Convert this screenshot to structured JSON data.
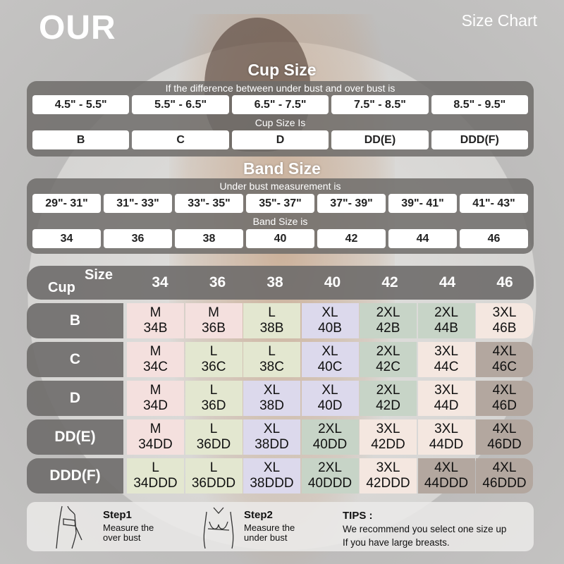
{
  "brand": "OUR",
  "header_right": "Size Chart",
  "cup_section": {
    "title": "Cup Size",
    "subtitle": "If the  difference between under bust and over bust is",
    "ranges": [
      "4.5\" -  5.5\"",
      "5.5\" -  6.5\"",
      "6.5\" -  7.5\"",
      "7.5\" -  8.5\"",
      "8.5\" -  9.5\""
    ],
    "result_label": "Cup Size Is",
    "cups": [
      "B",
      "C",
      "D",
      "DD(E)",
      "DDD(F)"
    ]
  },
  "band_section": {
    "title": "Band Size",
    "subtitle": "Under bust measurement is",
    "ranges": [
      "29\"- 31\"",
      "31\"- 33\"",
      "33\"- 35\"",
      "35\"- 37\"",
      "37\"- 39\"",
      "39\"- 41\"",
      "41\"- 43\""
    ],
    "result_label": "Band Size is",
    "bands": [
      "34",
      "36",
      "38",
      "40",
      "42",
      "44",
      "46"
    ]
  },
  "grid": {
    "corner_size": "Size",
    "corner_cup": "Cup",
    "columns": [
      "34",
      "36",
      "38",
      "40",
      "42",
      "44",
      "46"
    ],
    "size_colors": {
      "M": "#f4e0de",
      "L": "#e3e7d0",
      "XL": "#dcd9ec",
      "2XL": "#c7d4c7",
      "3XL": "#f4e7e0",
      "4XL": "#b3a79f"
    },
    "rows": [
      {
        "cup": "B",
        "cells": [
          [
            "M",
            "34B"
          ],
          [
            "M",
            "36B"
          ],
          [
            "L",
            "38B"
          ],
          [
            "XL",
            "40B"
          ],
          [
            "2XL",
            "42B"
          ],
          [
            "2XL",
            "44B"
          ],
          [
            "3XL",
            "46B"
          ]
        ]
      },
      {
        "cup": "C",
        "cells": [
          [
            "M",
            "34C"
          ],
          [
            "L",
            "36C"
          ],
          [
            "L",
            "38C"
          ],
          [
            "XL",
            "40C"
          ],
          [
            "2XL",
            "42C"
          ],
          [
            "3XL",
            "44C"
          ],
          [
            "4XL",
            "46C"
          ]
        ]
      },
      {
        "cup": "D",
        "cells": [
          [
            "M",
            "34D"
          ],
          [
            "L",
            "36D"
          ],
          [
            "XL",
            "38D"
          ],
          [
            "XL",
            "40D"
          ],
          [
            "2XL",
            "42D"
          ],
          [
            "3XL",
            "44D"
          ],
          [
            "4XL",
            "46D"
          ]
        ]
      },
      {
        "cup": "DD(E)",
        "cells": [
          [
            "M",
            "34DD"
          ],
          [
            "L",
            "36DD"
          ],
          [
            "XL",
            "38DD"
          ],
          [
            "2XL",
            "40DD"
          ],
          [
            "3XL",
            "42DD"
          ],
          [
            "3XL",
            "44DD"
          ],
          [
            "4XL",
            "46DD"
          ]
        ]
      },
      {
        "cup": "DDD(F)",
        "cells": [
          [
            "L",
            "34DDD"
          ],
          [
            "L",
            "36DDD"
          ],
          [
            "XL",
            "38DDD"
          ],
          [
            "2XL",
            "40DDD"
          ],
          [
            "3XL",
            "42DDD"
          ],
          [
            "4XL",
            "44DDD"
          ],
          [
            "4XL",
            "46DDD"
          ]
        ]
      }
    ]
  },
  "steps": [
    {
      "title": "Step1",
      "text1": "Measure the",
      "text2": "over bust"
    },
    {
      "title": "Step2",
      "text1": "Measure the",
      "text2": "under bust"
    }
  ],
  "tips": {
    "title": "TIPS :",
    "line1": "We recommend you select one size up",
    "line2": "If you have large breasts."
  }
}
